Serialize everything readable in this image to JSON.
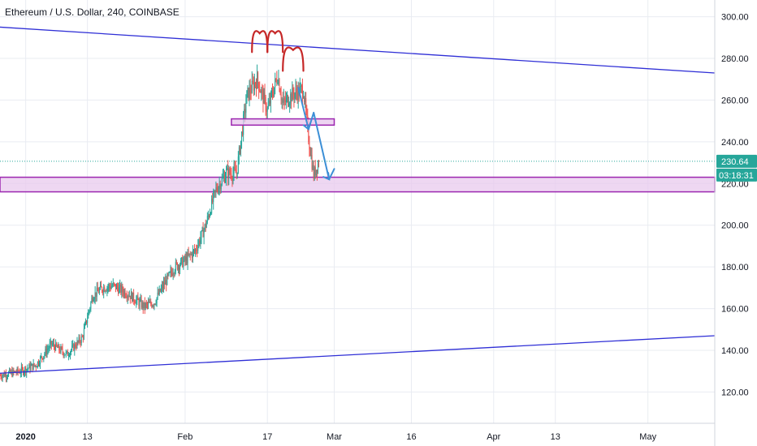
{
  "header": {
    "title": "Ethereum / U.S. Dollar, 240, COINBASE"
  },
  "colors": {
    "up": "#26a69a",
    "down": "#ef5350",
    "grid": "#e9ecf2",
    "channel_line": "#2f2fd6",
    "zone_fill": "#e8c9ee",
    "zone_border": "#9c27b0",
    "head_shoulders": "#c62828",
    "arrow": "#3c8fd6",
    "price_line": "#26a69a",
    "price_badge": "#26a69a",
    "countdown_badge": "#26a69a"
  },
  "chart_data": {
    "type": "candlestick",
    "title": "Ethereum / U.S. Dollar, 240, COINBASE",
    "ylim": [
      105,
      308
    ],
    "y_ticks": [
      "120.00",
      "140.00",
      "160.00",
      "180.00",
      "200.00",
      "220.00",
      "240.00",
      "260.00",
      "280.00",
      "300.00"
    ],
    "x_ticks": [
      {
        "date": "2020-01-01",
        "label": "2020",
        "bold": true
      },
      {
        "date": "2020-01-13",
        "label": "13",
        "bold": false
      },
      {
        "date": "2020-02-01",
        "label": "Feb",
        "bold": false
      },
      {
        "date": "2020-02-17",
        "label": "17",
        "bold": false
      },
      {
        "date": "2020-03-01",
        "label": "Mar",
        "bold": false
      },
      {
        "date": "2020-03-16",
        "label": "16",
        "bold": false
      },
      {
        "date": "2020-04-01",
        "label": "Apr",
        "bold": false
      },
      {
        "date": "2020-04-13",
        "label": "13",
        "bold": false
      },
      {
        "date": "2020-05-01",
        "label": "May",
        "bold": false
      }
    ],
    "xlim": [
      "2019-12-27",
      "2020-05-14"
    ],
    "price_path": [
      {
        "date": "2019-12-27",
        "price": 128
      },
      {
        "date": "2019-12-31",
        "price": 130
      },
      {
        "date": "2020-01-03",
        "price": 133
      },
      {
        "date": "2020-01-06",
        "price": 143
      },
      {
        "date": "2020-01-09",
        "price": 138
      },
      {
        "date": "2020-01-12",
        "price": 146
      },
      {
        "date": "2020-01-14",
        "price": 166
      },
      {
        "date": "2020-01-16",
        "price": 170
      },
      {
        "date": "2020-01-18",
        "price": 171
      },
      {
        "date": "2020-01-21",
        "price": 167
      },
      {
        "date": "2020-01-24",
        "price": 161
      },
      {
        "date": "2020-01-26",
        "price": 163
      },
      {
        "date": "2020-01-28",
        "price": 172
      },
      {
        "date": "2020-01-30",
        "price": 180
      },
      {
        "date": "2020-02-01",
        "price": 183
      },
      {
        "date": "2020-02-03",
        "price": 188
      },
      {
        "date": "2020-02-05",
        "price": 200
      },
      {
        "date": "2020-02-07",
        "price": 217
      },
      {
        "date": "2020-02-09",
        "price": 225
      },
      {
        "date": "2020-02-11",
        "price": 225
      },
      {
        "date": "2020-02-13",
        "price": 262
      },
      {
        "date": "2020-02-15",
        "price": 270
      },
      {
        "date": "2020-02-17",
        "price": 255
      },
      {
        "date": "2020-02-19",
        "price": 272
      },
      {
        "date": "2020-02-20",
        "price": 258
      },
      {
        "date": "2020-02-22",
        "price": 263
      },
      {
        "date": "2020-02-24",
        "price": 265
      },
      {
        "date": "2020-02-25",
        "price": 242
      },
      {
        "date": "2020-02-26",
        "price": 224
      },
      {
        "date": "2020-02-27",
        "price": 230.64
      }
    ],
    "last_price": "230.64",
    "countdown": "03:18:31",
    "drawings": {
      "upper_trendline": [
        {
          "date": "2019-12-27",
          "price": 295
        },
        {
          "date": "2020-05-14",
          "price": 273
        }
      ],
      "lower_trendline": [
        {
          "date": "2019-12-27",
          "price": 129
        },
        {
          "date": "2020-05-14",
          "price": 147
        }
      ],
      "support_zone": {
        "from": "2019-12-27",
        "to": "2020-05-14",
        "low": 216,
        "high": 223
      },
      "neckline_box": {
        "from": "2020-02-10",
        "to": "2020-03-01",
        "low": 248,
        "high": 251
      },
      "head_and_shoulders": [
        {
          "from": "2020-02-14",
          "to": "2020-02-17",
          "low": 283,
          "peak": 292
        },
        {
          "from": "2020-02-17",
          "to": "2020-02-20",
          "low": 283,
          "peak": 292
        },
        {
          "from": "2020-02-20",
          "to": "2020-02-24",
          "low": 274,
          "peak": 284
        }
      ],
      "arrow": [
        {
          "date": "2020-02-23",
          "price": 266
        },
        {
          "date": "2020-02-25",
          "price": 246
        },
        {
          "date": "2020-02-26",
          "price": 254
        },
        {
          "date": "2020-02-29",
          "price": 222
        },
        {
          "date": "2020-03-01",
          "price": 227
        }
      ]
    }
  }
}
